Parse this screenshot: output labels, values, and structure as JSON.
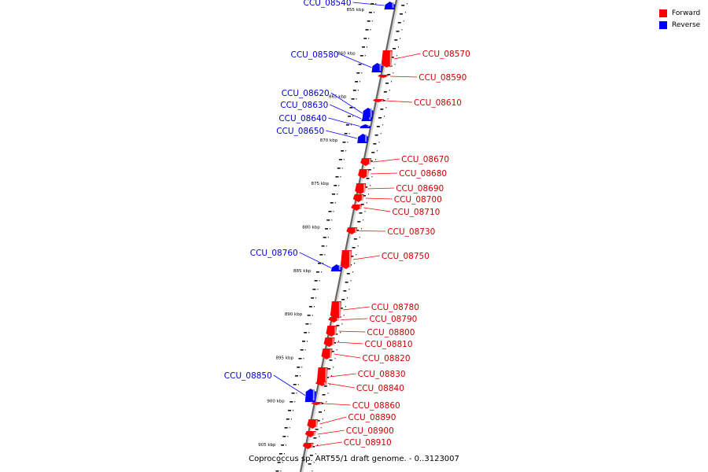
{
  "legend": {
    "forward_label": "Forward",
    "reverse_label": "Reverse",
    "forward_color": "#ff0000",
    "reverse_color": "#0000ff"
  },
  "caption": "Coprococcus sp. ART55/1 draft genome. - 0..3123007",
  "ticks": [
    "855 kbp",
    "860 kbp",
    "865 kbp",
    "870 kbp",
    "875 kbp",
    "880 kbp",
    "885 kbp",
    "890 kbp",
    "895 kbp",
    "900 kbp",
    "905 kbp"
  ],
  "genes": [
    {
      "id": "CCU_08540",
      "strand": "reverse"
    },
    {
      "id": "CCU_08570",
      "strand": "forward"
    },
    {
      "id": "CCU_08580",
      "strand": "reverse"
    },
    {
      "id": "CCU_08590",
      "strand": "forward"
    },
    {
      "id": "CCU_08610",
      "strand": "forward"
    },
    {
      "id": "CCU_08620",
      "strand": "reverse"
    },
    {
      "id": "CCU_08630",
      "strand": "reverse"
    },
    {
      "id": "CCU_08640",
      "strand": "reverse"
    },
    {
      "id": "CCU_08650",
      "strand": "reverse"
    },
    {
      "id": "CCU_08670",
      "strand": "forward"
    },
    {
      "id": "CCU_08680",
      "strand": "forward"
    },
    {
      "id": "CCU_08690",
      "strand": "forward"
    },
    {
      "id": "CCU_08700",
      "strand": "forward"
    },
    {
      "id": "CCU_08710",
      "strand": "forward"
    },
    {
      "id": "CCU_08730",
      "strand": "forward"
    },
    {
      "id": "CCU_08750",
      "strand": "forward"
    },
    {
      "id": "CCU_08760",
      "strand": "reverse"
    },
    {
      "id": "CCU_08780",
      "strand": "forward"
    },
    {
      "id": "CCU_08790",
      "strand": "forward"
    },
    {
      "id": "CCU_08800",
      "strand": "forward"
    },
    {
      "id": "CCU_08810",
      "strand": "forward"
    },
    {
      "id": "CCU_08820",
      "strand": "forward"
    },
    {
      "id": "CCU_08830",
      "strand": "forward"
    },
    {
      "id": "CCU_08840",
      "strand": "forward"
    },
    {
      "id": "CCU_08850",
      "strand": "reverse"
    },
    {
      "id": "CCU_08860",
      "strand": "forward"
    },
    {
      "id": "CCU_08890",
      "strand": "forward"
    },
    {
      "id": "CCU_08900",
      "strand": "forward"
    },
    {
      "id": "CCU_08910",
      "strand": "forward"
    }
  ]
}
